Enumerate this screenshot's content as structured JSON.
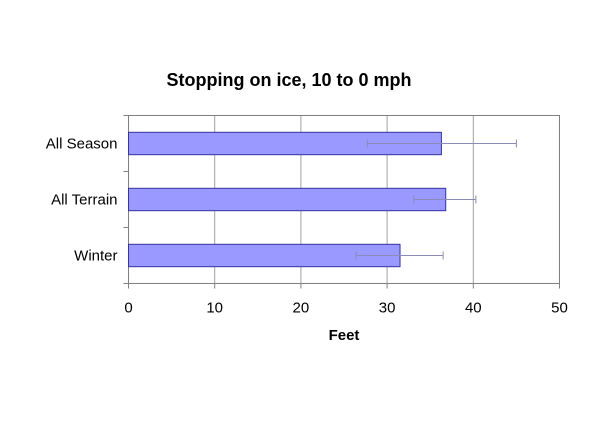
{
  "chart_data": {
    "type": "bar",
    "orientation": "horizontal",
    "title": "Stopping on ice, 10 to 0 mph",
    "xlabel": "Feet",
    "ylabel": "",
    "categories": [
      "All Season",
      "All Terrain",
      "Winter"
    ],
    "values": [
      36.3,
      36.8,
      31.5
    ],
    "error_low": [
      27.7,
      33.1,
      26.4
    ],
    "error_high": [
      45.0,
      40.3,
      36.5
    ],
    "xlim": [
      0,
      50
    ],
    "xticks": [
      "0",
      "10",
      "20",
      "30",
      "40",
      "50"
    ],
    "grid": "vertical",
    "legend": "none",
    "bar_color": "#9999ff",
    "bar_edge_color": "#3333aa"
  }
}
